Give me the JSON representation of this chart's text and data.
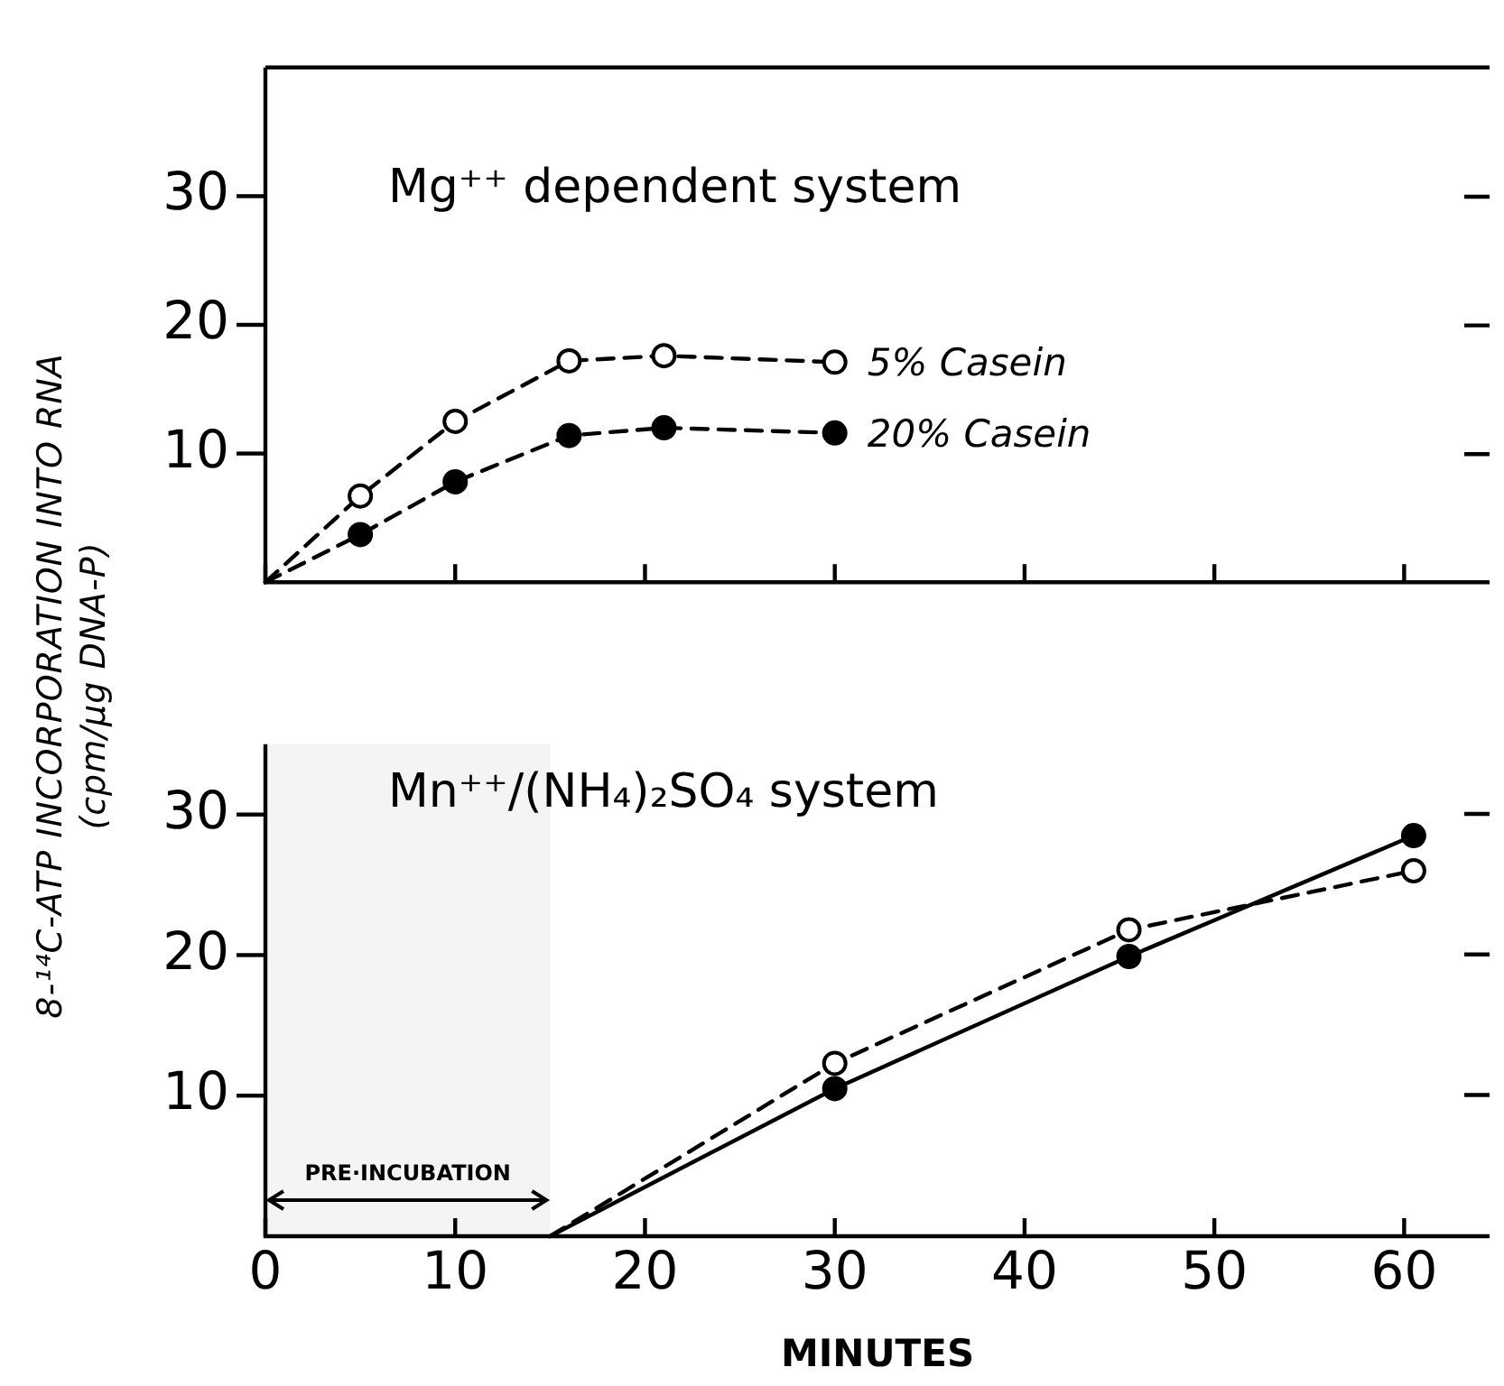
{
  "chart_data": [
    {
      "type": "line",
      "title": "Mg⁺⁺ dependent system",
      "ylabel": "8-¹⁴C-ATP INCORPORATION INTO RNA\n(cpm/µg DNA-P)",
      "xlim": [
        0,
        64.5
      ],
      "xticks": [
        0,
        10,
        20,
        30,
        40,
        50,
        60
      ],
      "ylim": [
        0,
        40
      ],
      "yticks": [
        10,
        20,
        30
      ],
      "tick_labels": "y",
      "grid": false,
      "legend": false,
      "marker": "circle",
      "series": [
        {
          "name": "5% Casein",
          "color": "#000000",
          "line_style": "dashed",
          "x": [
            0,
            5,
            10,
            16,
            21,
            30
          ],
          "values": [
            0,
            6.7,
            12.5,
            17.2,
            17.6,
            17.1
          ]
        },
        {
          "name": "20% Casein",
          "color": "#000000",
          "line_style": "dashed",
          "x": [
            0,
            5,
            10,
            16,
            21,
            30
          ],
          "values": [
            0,
            3.7,
            7.8,
            11.4,
            12.0,
            11.6
          ]
        }
      ]
    },
    {
      "type": "line",
      "title": "Mn⁺⁺/(NH₄)₂SO₄ system",
      "xlabel": "MINUTES",
      "xlim": [
        0,
        64.5
      ],
      "xticks": [
        0,
        10,
        20,
        30,
        40,
        50,
        60
      ],
      "ylim": [
        0,
        35
      ],
      "yticks": [
        10,
        20,
        30
      ],
      "grid": false,
      "legend": false,
      "marker": "circle",
      "bands": [
        {
          "axis": "x",
          "from": 0,
          "to": 15,
          "label": "PRE·INCUBATION",
          "color": "#f4f4f4"
        }
      ],
      "series": [
        {
          "color": "#000000",
          "line_style": "dashed",
          "x": [
            15,
            30,
            45.5,
            60.5
          ],
          "values": [
            0,
            12.3,
            21.8,
            26.0
          ]
        },
        {
          "color": "#000000",
          "line_style": "solid",
          "x": [
            15,
            30,
            45.5,
            60.5
          ],
          "values": [
            0,
            10.5,
            19.9,
            28.5
          ]
        }
      ]
    }
  ]
}
